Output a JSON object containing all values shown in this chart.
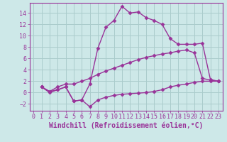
{
  "background_color": "#cde8e8",
  "grid_color": "#aacccc",
  "line_color": "#993399",
  "xlabel": "Windchill (Refroidissement éolien,°C)",
  "xlim": [
    -0.5,
    23.5
  ],
  "ylim": [
    -3.2,
    15.8
  ],
  "yticks": [
    -2,
    0,
    2,
    4,
    6,
    8,
    10,
    12,
    14
  ],
  "xticks": [
    0,
    1,
    2,
    3,
    4,
    5,
    6,
    7,
    8,
    9,
    10,
    11,
    12,
    13,
    14,
    15,
    16,
    17,
    18,
    19,
    20,
    21,
    22,
    23
  ],
  "line1_x": [
    1,
    2,
    3,
    4,
    5,
    6,
    7,
    8,
    9,
    10,
    11,
    12,
    13,
    14,
    15,
    16,
    17,
    18,
    19,
    20,
    21,
    22,
    23
  ],
  "line1_y": [
    1.0,
    0.0,
    0.5,
    1.0,
    -1.5,
    -1.3,
    -2.5,
    -1.3,
    -0.8,
    -0.5,
    -0.3,
    -0.2,
    -0.1,
    0.0,
    0.2,
    0.5,
    1.0,
    1.3,
    1.5,
    1.8,
    2.0,
    2.0,
    2.0
  ],
  "line2_x": [
    1,
    2,
    3,
    4,
    5,
    6,
    7,
    8,
    9,
    10,
    11,
    12,
    13,
    14,
    15,
    16,
    17,
    18,
    19,
    20,
    21,
    22,
    23
  ],
  "line2_y": [
    1.0,
    0.2,
    1.0,
    1.5,
    1.5,
    2.0,
    2.5,
    3.2,
    3.8,
    4.3,
    4.8,
    5.3,
    5.8,
    6.2,
    6.5,
    6.8,
    7.0,
    7.3,
    7.5,
    7.0,
    2.5,
    2.2,
    2.0
  ],
  "line3_x": [
    1,
    2,
    3,
    4,
    5,
    6,
    7,
    8,
    9,
    10,
    11,
    12,
    13,
    14,
    15,
    16,
    17,
    18,
    19,
    20,
    21,
    22,
    23
  ],
  "line3_y": [
    1.0,
    0.2,
    0.5,
    1.0,
    -1.5,
    -1.3,
    1.5,
    7.8,
    11.5,
    12.7,
    15.2,
    14.0,
    14.2,
    13.2,
    12.7,
    12.0,
    9.5,
    8.5,
    8.5,
    8.5,
    8.7,
    2.3,
    2.0
  ],
  "marker": "D",
  "markersize": 2.5,
  "linewidth": 1.0,
  "xlabel_fontsize": 7.0,
  "tick_fontsize": 6.0
}
